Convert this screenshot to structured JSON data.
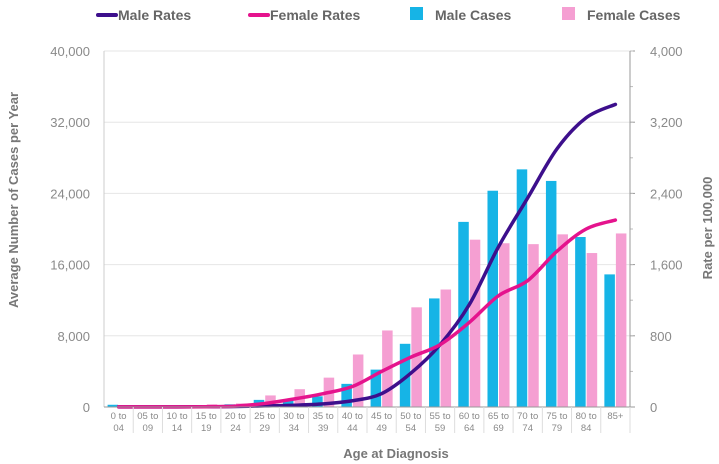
{
  "chart_data": {
    "type": "bar",
    "categories": [
      [
        "0 to",
        "04"
      ],
      [
        "05 to",
        "09"
      ],
      [
        "10 to",
        "14"
      ],
      [
        "15 to",
        "19"
      ],
      [
        "20 to",
        "24"
      ],
      [
        "25 to",
        "29"
      ],
      [
        "30 to",
        "34"
      ],
      [
        "35 to",
        "39"
      ],
      [
        "40 to",
        "44"
      ],
      [
        "45 to",
        "49"
      ],
      [
        "50 to",
        "54"
      ],
      [
        "55 to",
        "59"
      ],
      [
        "60 to",
        "64"
      ],
      [
        "65 to",
        "69"
      ],
      [
        "70 to",
        "74"
      ],
      [
        "75 to",
        "79"
      ],
      [
        "80 to",
        "84"
      ],
      [
        "85+",
        ""
      ]
    ],
    "series": [
      {
        "name": "Male Cases",
        "type": "bar",
        "axis": "left",
        "color": "#16b4e6",
        "values": [
          250,
          50,
          50,
          100,
          300,
          800,
          900,
          1200,
          2600,
          4200,
          7100,
          12200,
          20800,
          24300,
          26700,
          25400,
          19100,
          14900
        ]
      },
      {
        "name": "Female Cases",
        "type": "bar",
        "axis": "left",
        "color": "#f59fd2",
        "values": [
          150,
          50,
          50,
          300,
          400,
          1300,
          2000,
          3300,
          5900,
          8600,
          11200,
          13200,
          18800,
          18400,
          18300,
          19400,
          17300,
          19500
        ]
      },
      {
        "name": "Male Rates",
        "type": "line",
        "axis": "right",
        "color": "#3d0f8c",
        "values": [
          2,
          1,
          1,
          3,
          5,
          12,
          20,
          35,
          70,
          150,
          380,
          700,
          1150,
          1800,
          2350,
          2900,
          3250,
          3400
        ]
      },
      {
        "name": "Female Rates",
        "type": "line",
        "axis": "right",
        "color": "#e5138d",
        "values": [
          2,
          1,
          1,
          3,
          10,
          40,
          90,
          150,
          230,
          400,
          560,
          700,
          950,
          1250,
          1420,
          1750,
          2000,
          2100
        ]
      }
    ],
    "xlabel": "Age at Diagnosis",
    "ylabel": "Average Number of Cases per Year",
    "y2label": "Rate per 100,000",
    "ylim": [
      0,
      40000
    ],
    "y2lim": [
      0,
      4000
    ],
    "yticks": [
      "0",
      "8,000",
      "16,000",
      "24,000",
      "32,000",
      "40,000"
    ],
    "y2ticks": [
      "0",
      "800",
      "1,600",
      "2,400",
      "3,200",
      "4,000"
    ],
    "grid": "horizontal",
    "legend": "top"
  }
}
